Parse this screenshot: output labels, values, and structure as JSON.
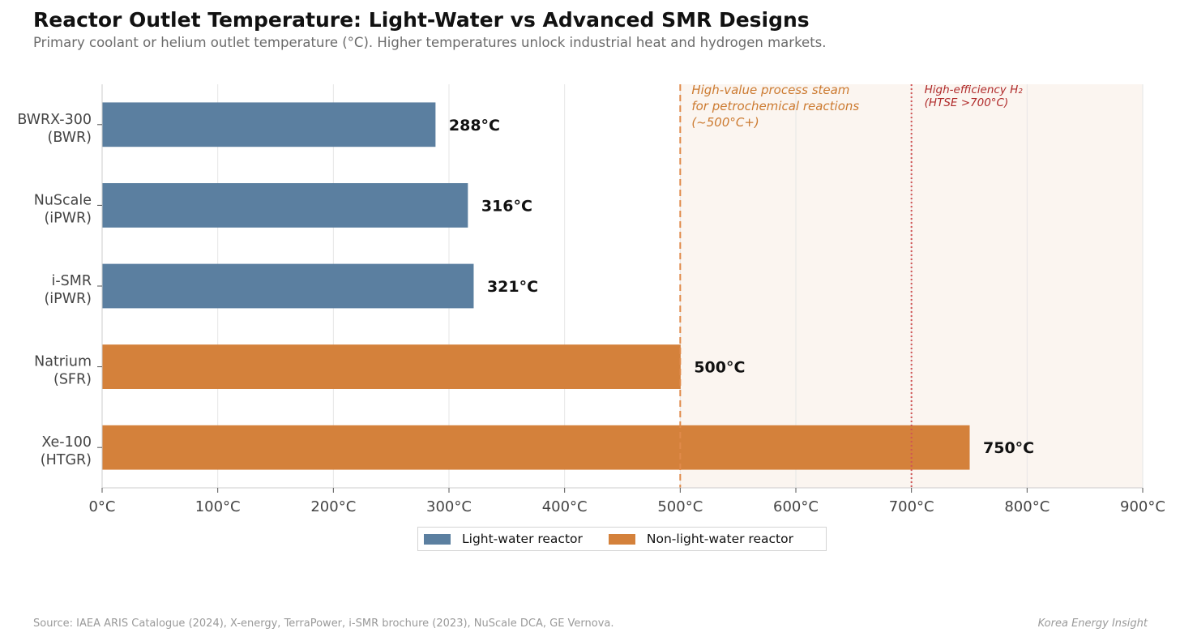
{
  "header": {
    "title": "Reactor Outlet Temperature: Light-Water vs Advanced SMR Designs",
    "subtitle": "Primary coolant or helium outlet temperature (°C). Higher temperatures unlock industrial heat and hydrogen markets."
  },
  "chart_data": {
    "type": "bar",
    "orientation": "horizontal",
    "title": "Reactor Outlet Temperature: Light-Water vs Advanced SMR Designs",
    "xlabel": "",
    "ylabel": "",
    "xlim": [
      0,
      900
    ],
    "x_ticks": [
      0,
      100,
      200,
      300,
      400,
      500,
      600,
      700,
      800,
      900
    ],
    "tick_suffix": "°C",
    "categories": [
      [
        "BWRX-300",
        "(BWR)"
      ],
      [
        "NuScale",
        "(iPWR)"
      ],
      [
        "i-SMR",
        "(iPWR)"
      ],
      [
        "Natrium",
        "(SFR)"
      ],
      [
        "Xe-100",
        "(HTGR)"
      ]
    ],
    "values": [
      288,
      316,
      321,
      500,
      750
    ],
    "value_labels": [
      "288°C",
      "316°C",
      "321°C",
      "500°C",
      "750°C"
    ],
    "bar_series": [
      "light",
      "light",
      "light",
      "nonlight",
      "nonlight"
    ],
    "series": [
      {
        "key": "light",
        "name": "Light-water reactor",
        "color": "#5b7fa0"
      },
      {
        "key": "nonlight",
        "name": "Non-light-water reactor",
        "color": "#d4813b"
      }
    ],
    "shaded_region": {
      "from": 500,
      "to": 900,
      "color": "#fbf5f0"
    },
    "reference_lines": [
      {
        "value": 500,
        "style": "dashed",
        "color": "#e08a4a",
        "text_color": "#cc7a30",
        "label": [
          "High-value process steam",
          "for petrochemical reactions",
          "(~500°C+)"
        ]
      },
      {
        "value": 700,
        "style": "dotted",
        "color": "#d05454",
        "text_color": "#b02a2a",
        "label": [
          "High-efficiency H₂",
          "(HTSE >700°C)"
        ]
      }
    ],
    "grid": true,
    "legend_position": "bottom-center"
  },
  "footer": {
    "source": "Source: IAEA ARIS Catalogue (2024), X-energy, TerraPower, i-SMR brochure (2023), NuScale DCA, GE Vernova.",
    "brand": "Korea Energy Insight"
  }
}
